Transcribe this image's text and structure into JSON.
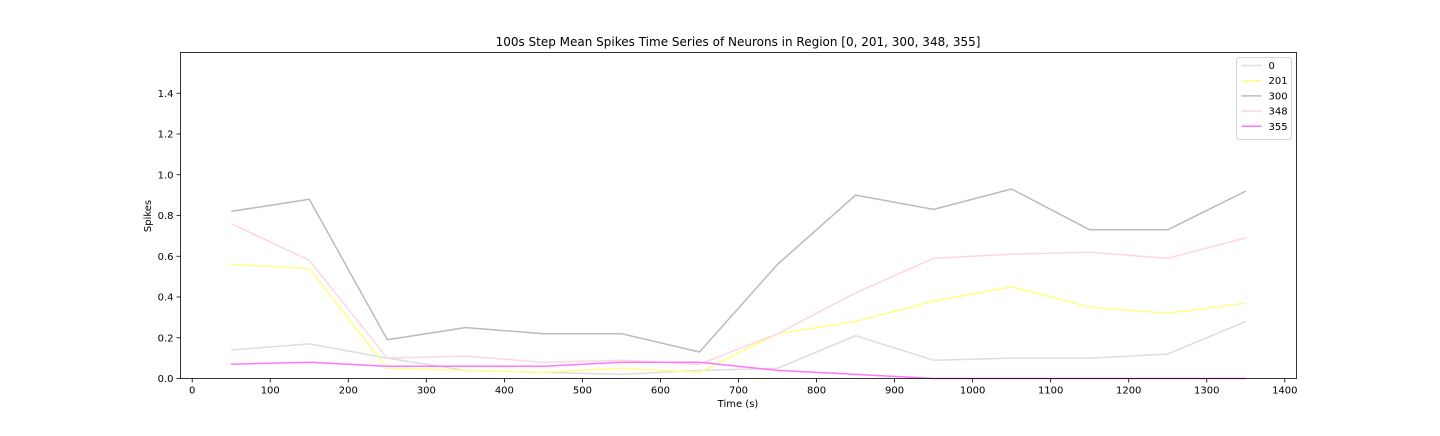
{
  "chart_data": {
    "type": "line",
    "title": "100s Step Mean Spikes Time Series of Neurons in Region [0, 201, 300, 348, 355]",
    "xlabel": "Time (s)",
    "ylabel": "Spikes",
    "xlim": [
      -15,
      1415
    ],
    "ylim": [
      0,
      1.6
    ],
    "xticks": [
      0,
      100,
      200,
      300,
      400,
      500,
      600,
      700,
      800,
      900,
      1000,
      1100,
      1200,
      1300,
      1400
    ],
    "yticks": [
      0.0,
      0.2,
      0.4,
      0.6,
      0.8,
      1.0,
      1.2,
      1.4
    ],
    "ytick_labels": [
      "0.0",
      "0.2",
      "0.4",
      "0.6",
      "0.8",
      "1.0",
      "1.2",
      "1.4"
    ],
    "grid": false,
    "legend_position": "top-right",
    "x": [
      50,
      150,
      250,
      350,
      450,
      550,
      650,
      750,
      850,
      950,
      1050,
      1150,
      1250,
      1350
    ],
    "series": [
      {
        "name": "0",
        "color": "#dddddd",
        "values": [
          0.14,
          0.17,
          0.1,
          0.04,
          0.03,
          0.02,
          0.04,
          0.05,
          0.21,
          0.09,
          0.1,
          0.1,
          0.12,
          0.28
        ]
      },
      {
        "name": "201",
        "color": "#ffff88",
        "values": [
          0.56,
          0.54,
          0.05,
          0.04,
          0.03,
          0.05,
          0.03,
          0.22,
          0.28,
          0.38,
          0.45,
          0.35,
          0.32,
          0.37
        ]
      },
      {
        "name": "300",
        "color": "#bbbbbb",
        "values": [
          0.82,
          0.88,
          0.19,
          0.25,
          0.22,
          0.22,
          0.13,
          0.56,
          0.9,
          0.83,
          0.93,
          0.73,
          0.73,
          0.92
        ]
      },
      {
        "name": "348",
        "color": "#ffd6e0",
        "values": [
          0.76,
          0.58,
          0.1,
          0.11,
          0.08,
          0.09,
          0.07,
          0.22,
          0.42,
          0.59,
          0.61,
          0.62,
          0.59,
          0.69
        ]
      },
      {
        "name": "355",
        "color": "#ff77ff",
        "values": [
          0.07,
          0.08,
          0.06,
          0.06,
          0.06,
          0.08,
          0.08,
          0.04,
          0.02,
          0.0,
          0.0,
          0.0,
          0.0,
          0.0
        ]
      }
    ]
  }
}
